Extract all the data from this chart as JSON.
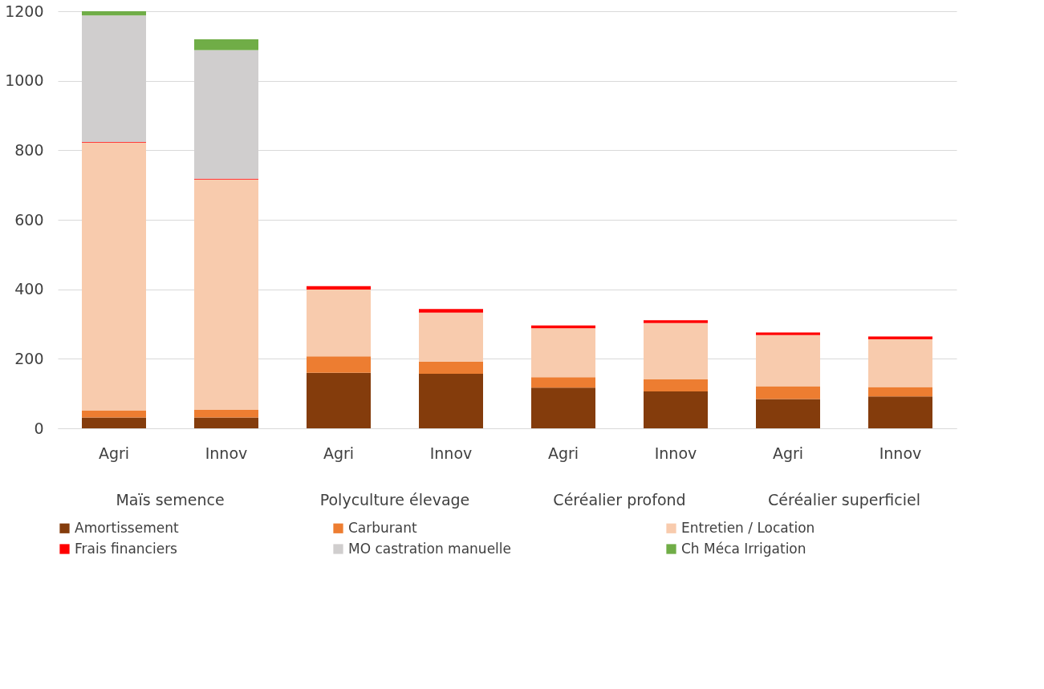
{
  "chart_data": {
    "type": "bar",
    "stacked": true,
    "categories": [
      "Agri",
      "Innov",
      "Agri",
      "Innov",
      "Agri",
      "Innov",
      "Agri",
      "Innov"
    ],
    "annotations": [
      "Maïs semence",
      "Polyculture élevage",
      "Céréalier profond",
      "Céréalier superficiel"
    ],
    "series": [
      {
        "name": "Amortissement",
        "color": "#843c0c",
        "values": [
          31,
          31,
          160,
          157,
          117,
          106,
          84,
          92
        ]
      },
      {
        "name": "Carburant",
        "color": "#ed7d31",
        "values": [
          20,
          22,
          47,
          35,
          30,
          35,
          37,
          27
        ]
      },
      {
        "name": "Entretien / Location",
        "color": "#f8cbad",
        "values": [
          771,
          663,
          192,
          141,
          141,
          162,
          147,
          137
        ]
      },
      {
        "name": "Frais financiers",
        "color": "#ff0000",
        "values": [
          2,
          2,
          10,
          10,
          8,
          8,
          8,
          8
        ]
      },
      {
        "name": "MO castration manuelle",
        "color": "#d0cece",
        "values": [
          364,
          370,
          0,
          0,
          0,
          0,
          0,
          0
        ]
      },
      {
        "name": "Ch Méca Irrigation",
        "color": "#70ad47",
        "values": [
          12,
          31,
          0,
          0,
          0,
          0,
          0,
          0
        ]
      }
    ],
    "ylim": [
      0,
      1200
    ],
    "yticks": [
      0,
      200,
      400,
      600,
      800,
      1000,
      1200
    ],
    "grid": "y",
    "legend": "bottom"
  }
}
